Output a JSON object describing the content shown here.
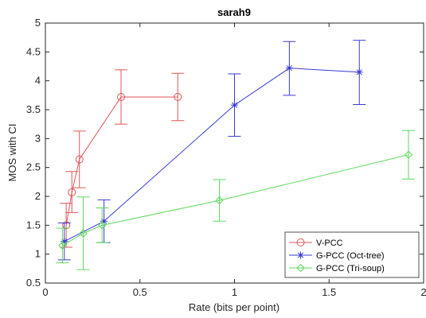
{
  "chart_data": {
    "type": "line",
    "title": "sarah9",
    "xlabel": "Rate (bits per point)",
    "ylabel": "MOS with CI",
    "xlim": [
      0,
      2
    ],
    "ylim": [
      0.5,
      5
    ],
    "xticks": [
      0,
      0.5,
      1,
      1.5,
      2
    ],
    "yticks": [
      0.5,
      1,
      1.5,
      2,
      2.5,
      3,
      3.5,
      4,
      4.5,
      5
    ],
    "xtick_labels": [
      "0",
      "0.5",
      "1",
      "1.5",
      "2"
    ],
    "ytick_labels": [
      "0.5",
      "1",
      "1.5",
      "2",
      "2.5",
      "3",
      "3.5",
      "4",
      "4.5",
      "5"
    ],
    "grid": false,
    "legend_position": "bottom-right",
    "series": [
      {
        "name": "V-PCC",
        "color": "#e05555",
        "marker": "circle",
        "points": [
          {
            "x": 0.11,
            "y": 1.5,
            "lo": 1.12,
            "hi": 1.88
          },
          {
            "x": 0.14,
            "y": 2.07,
            "lo": 1.72,
            "hi": 2.43
          },
          {
            "x": 0.18,
            "y": 2.64,
            "lo": 2.15,
            "hi": 3.13
          },
          {
            "x": 0.4,
            "y": 3.72,
            "lo": 3.25,
            "hi": 4.19
          },
          {
            "x": 0.7,
            "y": 3.72,
            "lo": 3.31,
            "hi": 4.13
          }
        ]
      },
      {
        "name": "G-PCC (Oct-tree)",
        "color": "#3a3ad6",
        "marker": "star",
        "points": [
          {
            "x": 0.1,
            "y": 1.22,
            "lo": 0.9,
            "hi": 1.54
          },
          {
            "x": 0.31,
            "y": 1.57,
            "lo": 1.2,
            "hi": 1.94
          },
          {
            "x": 1.0,
            "y": 3.58,
            "lo": 3.04,
            "hi": 4.12
          },
          {
            "x": 1.29,
            "y": 4.22,
            "lo": 3.75,
            "hi": 4.68
          },
          {
            "x": 1.66,
            "y": 4.15,
            "lo": 3.59,
            "hi": 4.7
          }
        ]
      },
      {
        "name": "G-PCC (Tri-soup)",
        "color": "#5ed95e",
        "marker": "diamond",
        "points": [
          {
            "x": 0.09,
            "y": 1.15,
            "lo": 0.85,
            "hi": 1.45
          },
          {
            "x": 0.2,
            "y": 1.36,
            "lo": 0.73,
            "hi": 1.99
          },
          {
            "x": 0.3,
            "y": 1.5,
            "lo": 1.2,
            "hi": 1.8
          },
          {
            "x": 0.92,
            "y": 1.93,
            "lo": 1.57,
            "hi": 2.29
          },
          {
            "x": 1.92,
            "y": 2.72,
            "lo": 2.3,
            "hi": 3.14
          }
        ]
      }
    ]
  }
}
